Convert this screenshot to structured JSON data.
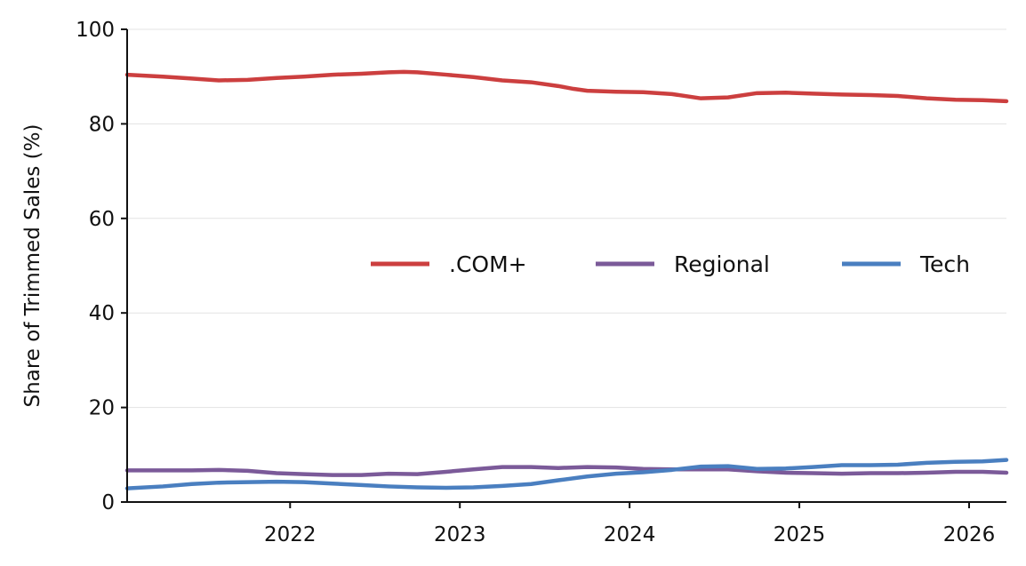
{
  "chart_data": {
    "type": "line",
    "title": "",
    "xlabel": "",
    "ylabel": "Share of Trimmed Sales (%)",
    "xlim": [
      2021.04,
      2026.22
    ],
    "ylim": [
      0,
      100
    ],
    "grid": "y-only",
    "legend_position": "center-right",
    "x_ticks": [
      2022,
      2023,
      2024,
      2025,
      2026
    ],
    "x_tick_labels": [
      "2022",
      "2023",
      "2024",
      "2025",
      "2026"
    ],
    "y_ticks": [
      0,
      20,
      40,
      60,
      80,
      100
    ],
    "y_tick_labels": [
      "0",
      "20",
      "40",
      "60",
      "80",
      "100"
    ],
    "series": [
      {
        "name": ".COM+",
        "color": "#cc3f3f",
        "x": [
          2021.04,
          2021.25,
          2021.42,
          2021.58,
          2021.75,
          2021.92,
          2022.08,
          2022.25,
          2022.42,
          2022.58,
          2022.67,
          2022.75,
          2022.92,
          2023.08,
          2023.25,
          2023.42,
          2023.58,
          2023.67,
          2023.75,
          2023.92,
          2024.08,
          2024.25,
          2024.42,
          2024.58,
          2024.75,
          2024.92,
          2025.08,
          2025.25,
          2025.42,
          2025.58,
          2025.75,
          2025.92,
          2026.08,
          2026.22
        ],
        "y": [
          90.4,
          90.0,
          89.6,
          89.2,
          89.3,
          89.7,
          90.0,
          90.4,
          90.6,
          90.9,
          91.0,
          90.9,
          90.4,
          89.9,
          89.2,
          88.8,
          88.0,
          87.4,
          87.0,
          86.8,
          86.7,
          86.3,
          85.4,
          85.6,
          86.5,
          86.6,
          86.4,
          86.2,
          86.1,
          85.9,
          85.4,
          85.1,
          85.0,
          84.8
        ]
      },
      {
        "name": "Regional",
        "color": "#7b5a99",
        "x": [
          2021.04,
          2021.25,
          2021.42,
          2021.58,
          2021.75,
          2021.92,
          2022.08,
          2022.25,
          2022.42,
          2022.58,
          2022.75,
          2022.92,
          2023.08,
          2023.25,
          2023.42,
          2023.58,
          2023.75,
          2023.92,
          2024.08,
          2024.25,
          2024.42,
          2024.58,
          2024.75,
          2024.92,
          2025.08,
          2025.25,
          2025.42,
          2025.58,
          2025.75,
          2025.92,
          2026.08,
          2026.22
        ],
        "y": [
          6.7,
          6.7,
          6.7,
          6.8,
          6.6,
          6.1,
          5.9,
          5.7,
          5.7,
          6.0,
          5.9,
          6.4,
          6.9,
          7.4,
          7.4,
          7.2,
          7.4,
          7.3,
          7.0,
          6.9,
          6.9,
          6.9,
          6.5,
          6.2,
          6.1,
          6.0,
          6.1,
          6.1,
          6.2,
          6.4,
          6.4,
          6.2
        ]
      },
      {
        "name": "Tech",
        "color": "#4a7fc0",
        "x": [
          2021.04,
          2021.25,
          2021.42,
          2021.58,
          2021.75,
          2021.92,
          2022.08,
          2022.25,
          2022.42,
          2022.58,
          2022.75,
          2022.92,
          2023.08,
          2023.25,
          2023.42,
          2023.58,
          2023.75,
          2023.92,
          2024.08,
          2024.25,
          2024.42,
          2024.58,
          2024.75,
          2024.92,
          2025.08,
          2025.25,
          2025.42,
          2025.58,
          2025.75,
          2025.92,
          2026.08,
          2026.22
        ],
        "y": [
          2.9,
          3.3,
          3.8,
          4.1,
          4.2,
          4.3,
          4.2,
          3.9,
          3.6,
          3.3,
          3.1,
          3.0,
          3.1,
          3.4,
          3.8,
          4.6,
          5.4,
          6.0,
          6.3,
          6.8,
          7.5,
          7.6,
          7.0,
          7.1,
          7.4,
          7.8,
          7.8,
          7.9,
          8.3,
          8.5,
          8.6,
          8.9
        ]
      }
    ]
  }
}
